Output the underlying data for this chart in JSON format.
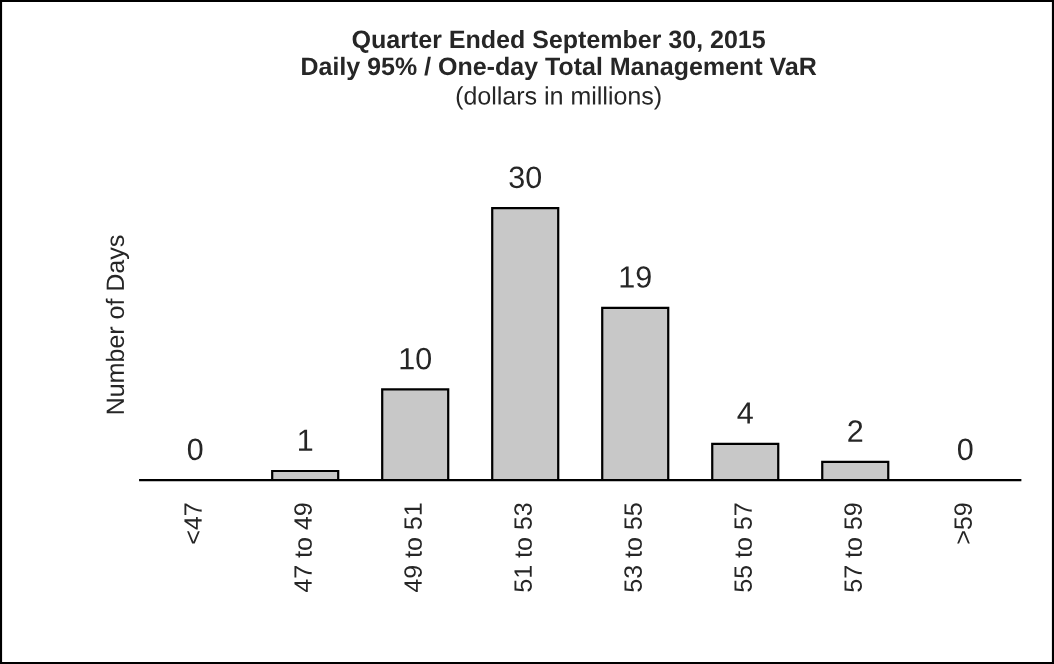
{
  "chart_data": {
    "type": "bar",
    "title": "Quarter Ended September 30, 2015\nDaily 95% / One-day Total Management VaR",
    "subtitle": "(dollars in millions)",
    "ylabel": "Number of Days",
    "categories": [
      "<47",
      "47 to 49",
      "49 to 51",
      "51 to 53",
      "53 to 55",
      "55 to 57",
      "57 to 59",
      ">59"
    ],
    "values": [
      0,
      1,
      10,
      30,
      19,
      4,
      2,
      0
    ],
    "color": "#c8c8c8",
    "data_labels": true,
    "tick_labels": "x",
    "grid": false,
    "legend": false
  }
}
